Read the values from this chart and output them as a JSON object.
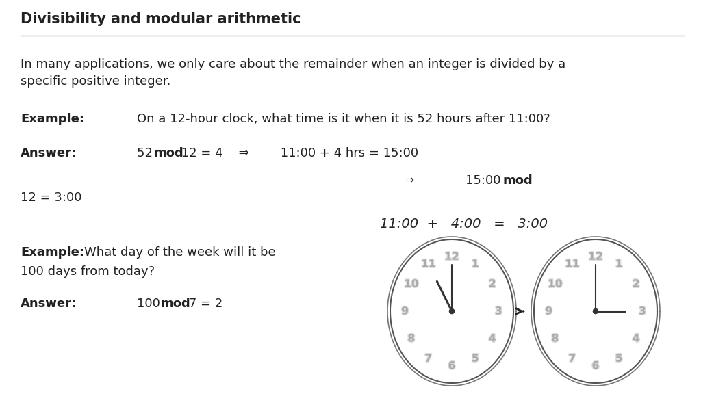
{
  "title": "Divisibility and modular arithmetic",
  "bg_color": "#ffffff",
  "text_color": "#222222",
  "intro_line1": "In many applications, we only care about the remainder when an integer is divided by a",
  "intro_line2": "specific positive integer.",
  "example1_label": "Example:",
  "example1_text": "On a 12-hour clock, what time is it when it is 52 hours after 11:00?",
  "answer1_label": "Answer:",
  "example2_label": "Example:",
  "example2_text": "What day of the week will it be",
  "example2_text2": "100 days from today?",
  "answer2_label": "Answer:",
  "clock1_hour": 11,
  "clock1_minute": 0,
  "clock2_hour": 3,
  "clock2_minute": 0,
  "clock_nums": [
    "12",
    "1",
    "2",
    "3",
    "4",
    "5",
    "6",
    "7",
    "8",
    "9",
    "10",
    "11"
  ],
  "title_fontsize": 15,
  "body_fontsize": 13,
  "clock_num_fontsize": 10,
  "clock_eq_fontsize": 14
}
